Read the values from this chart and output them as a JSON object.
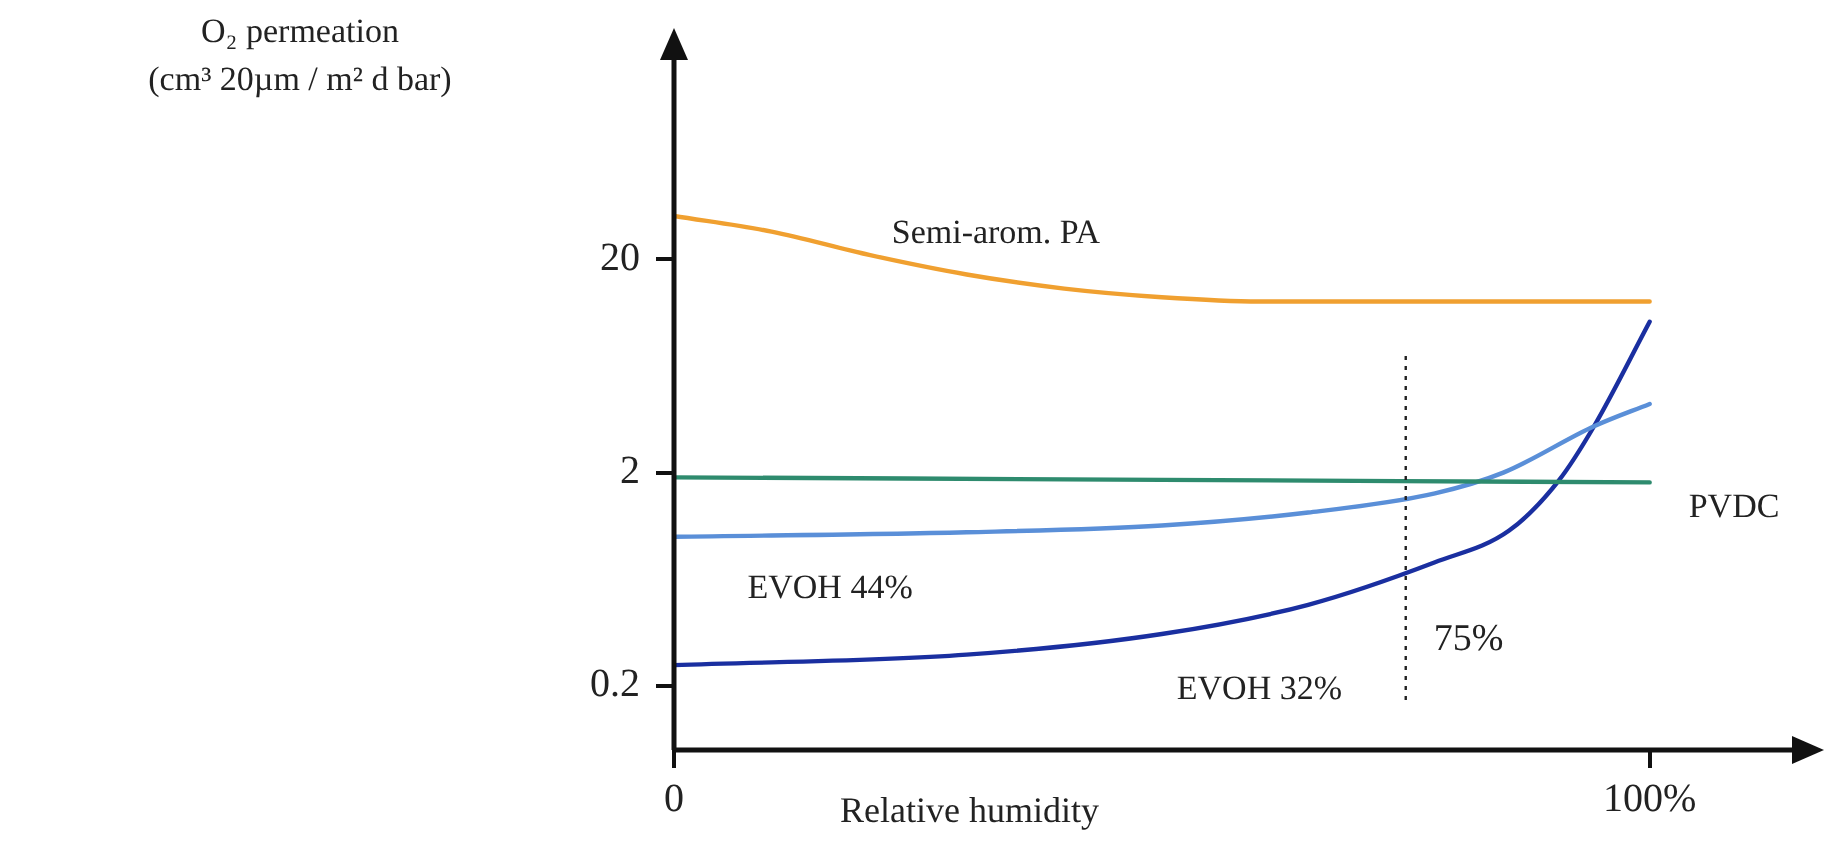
{
  "chart_data": {
    "type": "line",
    "ylabel": "O₂ permeation\n(cm³ 20µm / m² d bar)",
    "xlabel": "Relative humidity",
    "log": "y",
    "xlim": [
      0,
      115
    ],
    "xticks": [
      0,
      {
        "value": 100,
        "label": "100%"
      }
    ],
    "ylim": [
      0.1,
      180
    ],
    "yticks": [
      0.2,
      2,
      20
    ],
    "grid": false,
    "legend": false,
    "marker": "none",
    "line_style": "solid",
    "series": [
      {
        "name": "Semi-arom. PA",
        "color": "#f0a030",
        "x": [
          0,
          10,
          20,
          30,
          40,
          50,
          60,
          80,
          100
        ],
        "values": [
          32,
          27,
          21,
          17,
          14.6,
          13.3,
          12.7,
          12.7,
          12.7
        ]
      },
      {
        "name": "PVDC",
        "color": "#2e8b6e",
        "x": [
          0,
          50,
          100
        ],
        "values": [
          1.9,
          1.85,
          1.8
        ]
      },
      {
        "name": "EVOH 44%",
        "color": "#5a8fd8",
        "x": [
          0,
          30,
          50,
          65,
          78,
          85,
          94.3,
          100
        ],
        "values": [
          1,
          1.05,
          1.13,
          1.3,
          1.6,
          2,
          3.3,
          4.2
        ]
      },
      {
        "name": "EVOH 32%",
        "color": "#1a2fa0",
        "x": [
          0,
          30,
          50,
          65,
          78,
          85.6,
          90.7,
          94.3,
          100
        ],
        "values": [
          0.25,
          0.28,
          0.35,
          0.48,
          0.76,
          1.07,
          1.84,
          3.3,
          10.2
        ]
      }
    ],
    "ref_lines": [
      {
        "axis": "x",
        "value": 75,
        "label": "75%",
        "color": "#222222",
        "line_style": "dotted"
      }
    ]
  }
}
